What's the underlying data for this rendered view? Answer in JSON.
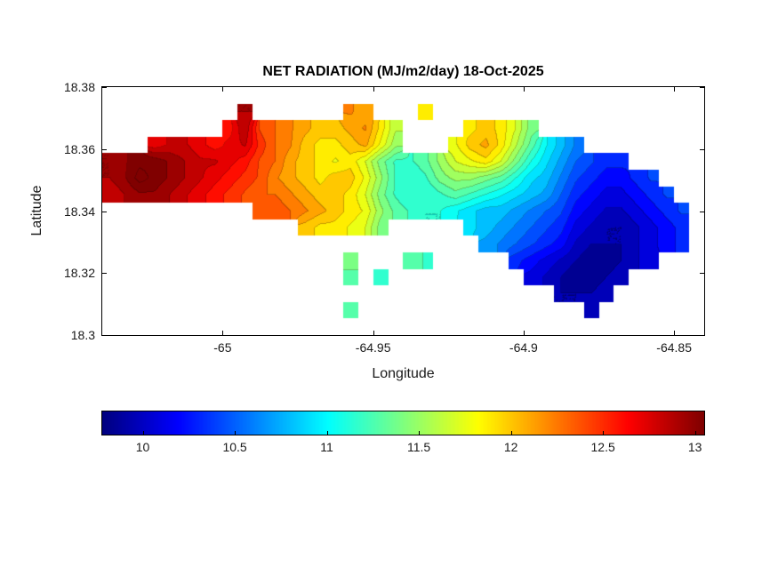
{
  "figure": {
    "background": "#ffffff",
    "axis_color": "#000000",
    "text_color": "#1a1a1a"
  },
  "chart_data": {
    "type": "heatmap",
    "title": "NET RADIATION (MJ/m2/day) 18-Oct-2025",
    "xlabel": "Longitude",
    "ylabel": "Latitude",
    "xlim": [
      -65.04,
      -64.84
    ],
    "ylim": [
      18.3,
      18.38
    ],
    "x_ticks": [
      {
        "v": -65,
        "label": "-65"
      },
      {
        "v": -64.95,
        "label": "-64.95"
      },
      {
        "v": -64.9,
        "label": "-64.9"
      },
      {
        "v": -64.85,
        "label": "-64.85"
      }
    ],
    "y_ticks": [
      {
        "v": 18.3,
        "label": "18.3"
      },
      {
        "v": 18.32,
        "label": "18.32"
      },
      {
        "v": 18.34,
        "label": "18.34"
      },
      {
        "v": 18.36,
        "label": "18.36"
      },
      {
        "v": 18.38,
        "label": "18.38"
      }
    ],
    "colormap": "jet",
    "color_range": [
      9.78,
      13.05
    ],
    "contour_interval": 0.12,
    "grid_lines": false,
    "colorbar": {
      "orientation": "horizontal",
      "ticks": [
        {
          "v": 10,
          "label": "10"
        },
        {
          "v": 10.5,
          "label": "10.5"
        },
        {
          "v": 11,
          "label": "11"
        },
        {
          "v": 11.5,
          "label": "11.5"
        },
        {
          "v": 12,
          "label": "12"
        },
        {
          "v": 12.5,
          "label": "12.5"
        },
        {
          "v": 13,
          "label": "13"
        }
      ]
    },
    "grid": {
      "values": [
        [
          null,
          null,
          null,
          null,
          null,
          null,
          null,
          null,
          null,
          null,
          null,
          null,
          null,
          null,
          null,
          null,
          null,
          null,
          null,
          null,
          null,
          null,
          null,
          null,
          null,
          null,
          null,
          null,
          null,
          null,
          null,
          null,
          null,
          null,
          null,
          null,
          null,
          null,
          null,
          null
        ],
        [
          null,
          null,
          null,
          null,
          null,
          null,
          null,
          null,
          null,
          12.9,
          null,
          null,
          null,
          null,
          null,
          null,
          12.2,
          12.1,
          null,
          null,
          null,
          11.9,
          null,
          null,
          null,
          null,
          null,
          null,
          null,
          null,
          null,
          null,
          null,
          null,
          null,
          null,
          null,
          null,
          null,
          null
        ],
        [
          null,
          null,
          null,
          null,
          null,
          null,
          null,
          null,
          12.6,
          12.9,
          12.4,
          12.3,
          12.2,
          12.1,
          12,
          12,
          12.1,
          12.2,
          11.9,
          11.6,
          null,
          null,
          null,
          null,
          11.9,
          12,
          11.9,
          11.7,
          11.4,
          null,
          null,
          null,
          null,
          null,
          null,
          null,
          null,
          null,
          null,
          null
        ],
        [
          null,
          null,
          null,
          12.7,
          12.8,
          12.8,
          12.7,
          12.6,
          12.7,
          12.8,
          12.5,
          12.3,
          12.2,
          12,
          11.9,
          11.9,
          12,
          12.1,
          11.8,
          11.5,
          null,
          null,
          null,
          11.8,
          12,
          12.1,
          11.9,
          11.6,
          11.3,
          11,
          10.8,
          10.6,
          null,
          null,
          null,
          null,
          null,
          null,
          null,
          null
        ],
        [
          12.9,
          13,
          13.1,
          13.1,
          13,
          12.9,
          12.8,
          12.8,
          12.7,
          12.6,
          12.4,
          12.3,
          12.1,
          12,
          11.9,
          11.8,
          11.9,
          11.7,
          11.4,
          11.2,
          11.2,
          11.3,
          11.5,
          11.7,
          11.8,
          11.9,
          11.7,
          11.4,
          11.1,
          10.9,
          10.7,
          10.5,
          10.4,
          10.3,
          10.3,
          null,
          null,
          null,
          null,
          null
        ],
        [
          12.9,
          13,
          13.2,
          13.1,
          13,
          12.9,
          12.8,
          12.7,
          12.6,
          12.5,
          12.4,
          12.2,
          12.1,
          12,
          11.9,
          12,
          12,
          11.8,
          11.5,
          11.2,
          11.1,
          11.2,
          11.4,
          11.5,
          11.5,
          11.4,
          11.3,
          11.1,
          10.9,
          10.8,
          10.6,
          10.4,
          10.3,
          10.2,
          10.2,
          10.3,
          10.4,
          null,
          null,
          null
        ],
        [
          12.8,
          12.9,
          13,
          13,
          12.9,
          12.8,
          12.7,
          12.6,
          12.5,
          12.4,
          12.3,
          12.3,
          12.2,
          12.1,
          12,
          12,
          11.9,
          11.7,
          11.4,
          11.2,
          11.1,
          11.1,
          11.2,
          11.3,
          11.2,
          11.1,
          11,
          10.9,
          10.8,
          10.7,
          10.5,
          10.3,
          10.2,
          10.1,
          10.1,
          10.2,
          10.3,
          10.4,
          null,
          null
        ],
        [
          null,
          null,
          null,
          null,
          null,
          null,
          null,
          null,
          null,
          null,
          12.4,
          12.4,
          12.3,
          12.2,
          12.1,
          12,
          11.9,
          11.8,
          11.5,
          11.3,
          11.2,
          11.1,
          11.1,
          11,
          10.9,
          10.8,
          10.8,
          10.7,
          10.6,
          10.5,
          10.4,
          10.2,
          10.1,
          10,
          10,
          10.1,
          10.2,
          10.3,
          10.4,
          null
        ],
        [
          null,
          null,
          null,
          null,
          null,
          null,
          null,
          null,
          null,
          null,
          null,
          null,
          null,
          12,
          11.9,
          11.9,
          11.8,
          11.7,
          11.4,
          null,
          null,
          null,
          null,
          null,
          10.9,
          10.8,
          10.7,
          10.6,
          10.5,
          10.4,
          10.3,
          10.1,
          10,
          9.9,
          9.9,
          10,
          10.1,
          10.2,
          10.3,
          null
        ],
        [
          null,
          null,
          null,
          null,
          null,
          null,
          null,
          null,
          null,
          null,
          null,
          null,
          null,
          null,
          null,
          null,
          null,
          null,
          null,
          null,
          null,
          null,
          null,
          null,
          null,
          10.7,
          10.6,
          10.5,
          10.4,
          10.3,
          10.2,
          10,
          9.9,
          9.9,
          9.9,
          10,
          10.1,
          10.2,
          10.3,
          null
        ],
        [
          null,
          null,
          null,
          null,
          null,
          null,
          null,
          null,
          null,
          null,
          null,
          null,
          null,
          null,
          null,
          null,
          11.4,
          null,
          null,
          null,
          11.3,
          11.2,
          null,
          null,
          null,
          null,
          null,
          10.3,
          10.2,
          10.1,
          10,
          9.9,
          9.8,
          9.8,
          9.9,
          10,
          10.1,
          null,
          null,
          null
        ],
        [
          null,
          null,
          null,
          null,
          null,
          null,
          null,
          null,
          null,
          null,
          null,
          null,
          null,
          null,
          null,
          null,
          11.3,
          null,
          11.2,
          null,
          null,
          null,
          null,
          null,
          null,
          null,
          null,
          null,
          10.1,
          10,
          9.9,
          9.8,
          9.8,
          9.9,
          10,
          null,
          null,
          null,
          null,
          null
        ],
        [
          null,
          null,
          null,
          null,
          null,
          null,
          null,
          null,
          null,
          null,
          null,
          null,
          null,
          null,
          null,
          null,
          null,
          null,
          null,
          null,
          null,
          null,
          null,
          null,
          null,
          null,
          null,
          null,
          null,
          null,
          9.9,
          9.9,
          9.9,
          10,
          null,
          null,
          null,
          null,
          null,
          null
        ],
        [
          null,
          null,
          null,
          null,
          null,
          null,
          null,
          null,
          null,
          null,
          null,
          null,
          null,
          null,
          null,
          null,
          11.3,
          null,
          null,
          null,
          null,
          null,
          null,
          null,
          null,
          null,
          null,
          null,
          null,
          null,
          null,
          null,
          10,
          null,
          null,
          null,
          null,
          null,
          null,
          null
        ],
        [
          null,
          null,
          null,
          null,
          null,
          null,
          null,
          null,
          null,
          null,
          null,
          null,
          null,
          null,
          null,
          null,
          null,
          null,
          null,
          null,
          null,
          null,
          null,
          null,
          null,
          null,
          null,
          null,
          null,
          null,
          null,
          null,
          null,
          null,
          null,
          null,
          null,
          null,
          null,
          null
        ]
      ]
    }
  }
}
